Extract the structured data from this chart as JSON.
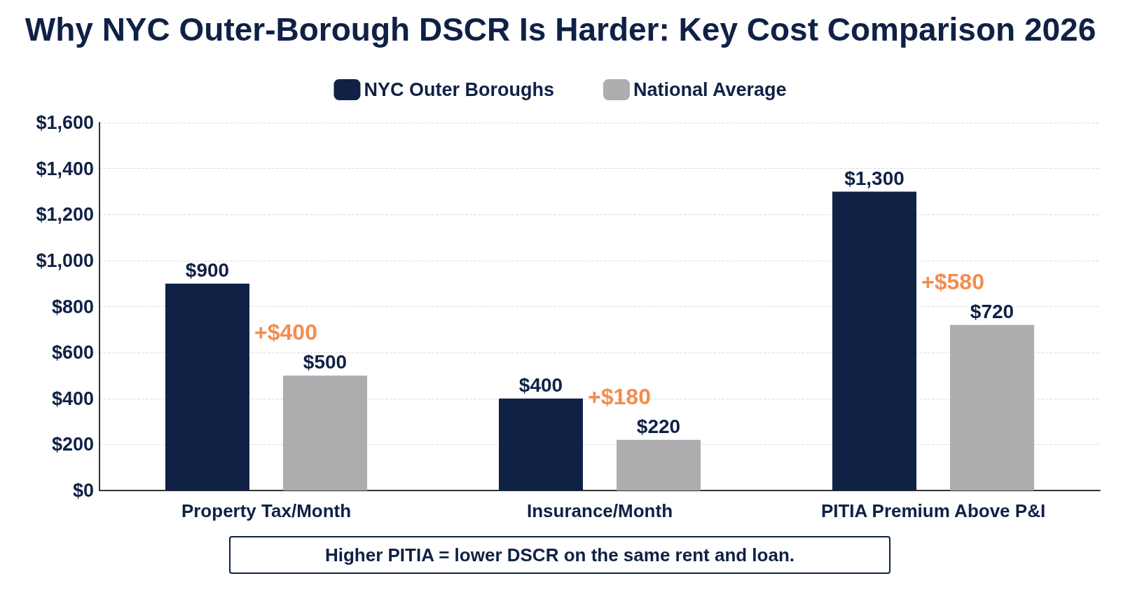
{
  "chart_data": {
    "type": "bar",
    "title": "Why NYC Outer-Borough DSCR Is Harder: Key Cost Comparison 2026",
    "categories": [
      "Property Tax/Month",
      "Insurance/Month",
      "PITIA Premium Above P&I"
    ],
    "series": [
      {
        "name": "NYC Outer Boroughs",
        "color": "#0f2145",
        "values": [
          900,
          400,
          1300
        ],
        "value_labels": [
          "$900",
          "$400",
          "$1,300"
        ]
      },
      {
        "name": "National Average",
        "color": "#adadb0",
        "values": [
          500,
          220,
          720
        ],
        "value_labels": [
          "$500",
          "$220",
          "$720"
        ]
      }
    ],
    "ylim": [
      0,
      1600
    ],
    "yticks": [
      {
        "value": 0,
        "label": "$0"
      },
      {
        "value": 200,
        "label": "$200"
      },
      {
        "value": 400,
        "label": "$400"
      },
      {
        "value": 600,
        "label": "$600"
      },
      {
        "value": 800,
        "label": "$800"
      },
      {
        "value": 1000,
        "label": "$1,000"
      },
      {
        "value": 1200,
        "label": "$1,200"
      },
      {
        "value": 1400,
        "label": "$1,400"
      },
      {
        "value": 1600,
        "label": "$1,600"
      }
    ],
    "annotations": [
      "+$400",
      "+$180",
      "+$580",
      "Higher PITIA = lower DSCR on the same rent and loan."
    ],
    "grid": "y",
    "legend": "top"
  }
}
